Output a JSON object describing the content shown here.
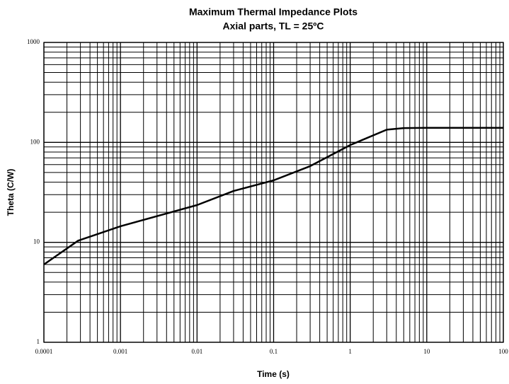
{
  "chart_data": {
    "type": "line",
    "title": "Maximum Thermal Impedance Plots",
    "subtitle": "Axial parts,  TL = 25ºC",
    "x_label": "Time (s)",
    "y_label": "Theta (C/W)",
    "x_log": true,
    "y_log": true,
    "grid": true,
    "minor_grid": true,
    "xlim": [
      0.0001,
      100
    ],
    "ylim": [
      1,
      1000
    ],
    "xticks": [
      0.0001,
      0.001,
      0.01,
      0.1,
      1,
      10,
      100
    ],
    "yticks": [
      1,
      10,
      100,
      1000
    ],
    "series": [
      {
        "name": "Theta",
        "color": "#000000",
        "x": [
          0.0001,
          0.00028,
          0.001,
          0.01,
          0.03,
          0.1,
          0.3,
          1,
          3,
          5,
          10,
          100
        ],
        "values": [
          6,
          10.4,
          14.5,
          23.6,
          32.6,
          41.7,
          57.9,
          94,
          134,
          139,
          140,
          140
        ]
      }
    ]
  }
}
